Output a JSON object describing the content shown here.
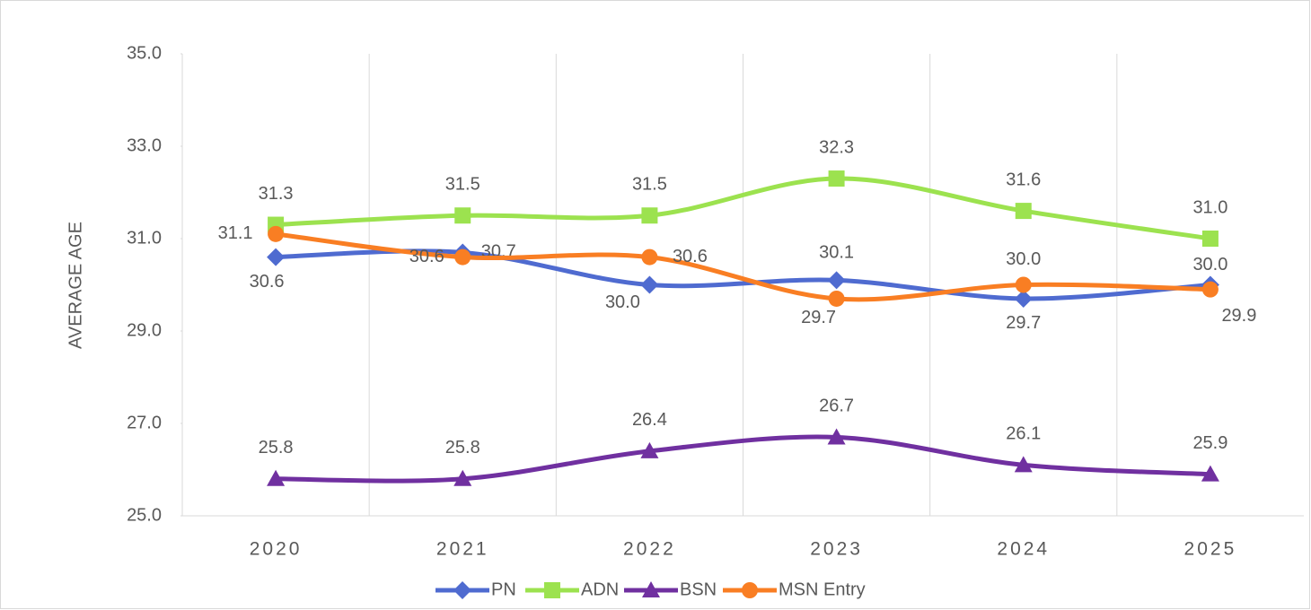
{
  "chart_data": {
    "type": "line",
    "smooth": true,
    "y_label": "AVERAGE AGE",
    "categories": [
      "2020",
      "2021",
      "2022",
      "2023",
      "2024",
      "2025"
    ],
    "series": [
      {
        "name": "PN",
        "color": "#4f6bd0",
        "marker": "diamond",
        "values": [
          30.6,
          30.7,
          30.0,
          30.1,
          29.7,
          30.0
        ],
        "value_labels": [
          "30.6",
          "30.7",
          "30.0",
          "30.1",
          "29.7",
          "30.0"
        ]
      },
      {
        "name": "ADN",
        "color": "#9ce24f",
        "marker": "square",
        "values": [
          31.3,
          31.5,
          31.5,
          32.3,
          31.6,
          31.0
        ],
        "value_labels": [
          "31.3",
          "31.5",
          "31.5",
          "32.3",
          "31.6",
          "31.0"
        ]
      },
      {
        "name": "BSN",
        "color": "#7030a0",
        "marker": "triangle",
        "values": [
          25.8,
          25.8,
          26.4,
          26.7,
          26.1,
          25.9
        ],
        "value_labels": [
          "25.8",
          "25.8",
          "26.4",
          "26.7",
          "26.1",
          "25.9"
        ]
      },
      {
        "name": "MSN Entry",
        "color": "#f97e23",
        "marker": "circle",
        "values": [
          31.1,
          30.6,
          30.6,
          29.7,
          30.0,
          29.9
        ],
        "value_labels": [
          "31.1",
          "30.6",
          "30.6",
          "29.7",
          "30.0",
          "29.9"
        ]
      }
    ],
    "ylim": [
      25,
      35
    ],
    "yticks": [
      {
        "value": 25,
        "label": "25.0"
      },
      {
        "value": 27,
        "label": "27.0"
      },
      {
        "value": 29,
        "label": "29.0"
      },
      {
        "value": 31,
        "label": "31.0"
      },
      {
        "value": 33,
        "label": "33.0"
      },
      {
        "value": 35,
        "label": "35.0"
      }
    ],
    "vertical_grid": true,
    "legend": "bottom"
  }
}
